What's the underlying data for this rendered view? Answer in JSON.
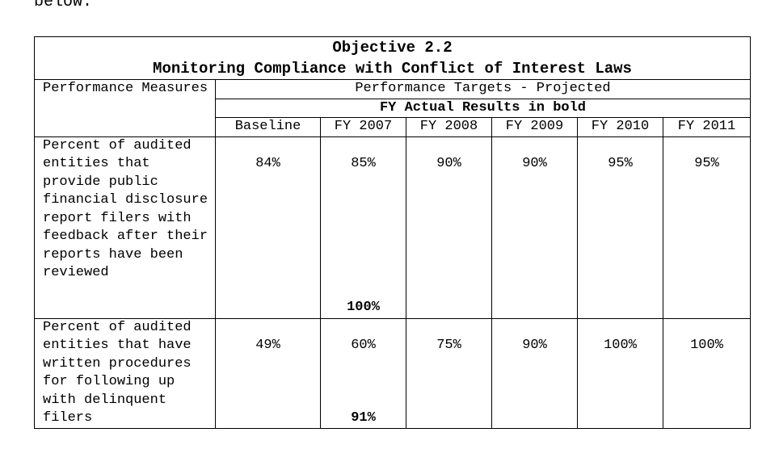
{
  "intro_text": "below:",
  "table": {
    "title": "Objective 2.2",
    "subtitle": "Monitoring Compliance with Conflict of Interest Laws",
    "measure_header": "Performance Measures",
    "targets_header": "Performance Targets - Projected",
    "actual_header": "FY Actual Results in bold",
    "years": [
      "Baseline",
      "FY 2007",
      "FY 2008",
      "FY 2009",
      "FY 2010",
      "FY 2011"
    ],
    "rows": [
      {
        "measure": "Percent of audited entities that provide public financial disclosure report filers with feedback after their reports have been reviewed",
        "values": [
          "84%",
          "85%",
          "90%",
          "90%",
          "95%",
          "95%"
        ],
        "actual": "100%"
      },
      {
        "measure": "Percent of audited entities that have written procedures for following up with delinquent filers",
        "values": [
          "49%",
          "60%",
          "75%",
          "90%",
          "100%",
          "100%"
        ],
        "actual": "91%"
      }
    ]
  }
}
